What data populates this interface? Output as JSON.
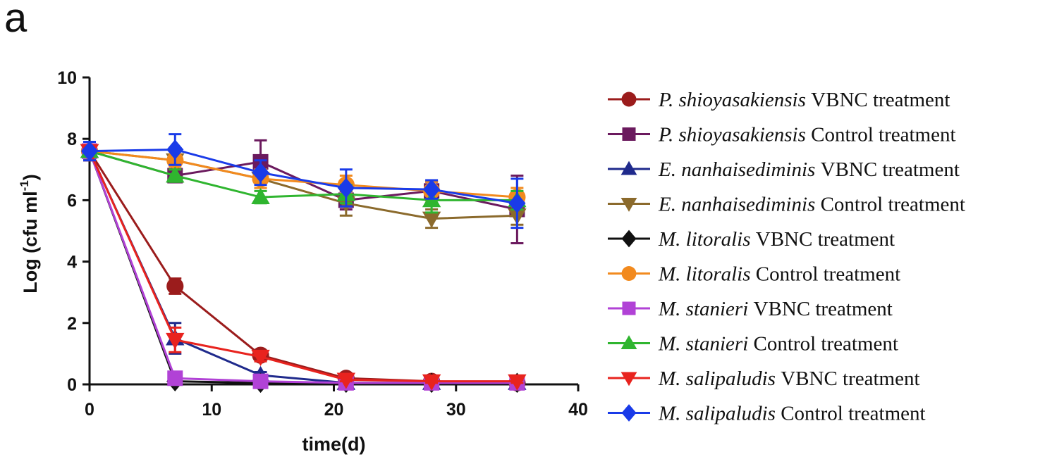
{
  "figure": {
    "panel_letter": "a"
  },
  "chart_data": {
    "type": "line",
    "title": "",
    "xlabel": "time(d)",
    "ylabel": "Log (cfu ml",
    "ylabel_superscript": "-1",
    "ylabel_close": ")",
    "xlim": [
      0,
      40
    ],
    "ylim": [
      0,
      10
    ],
    "x_ticks": [
      "0",
      "10",
      "20",
      "30",
      "40"
    ],
    "y_ticks": [
      "0",
      "2",
      "4",
      "6",
      "8",
      "10"
    ],
    "x": [
      0,
      7,
      14,
      21,
      28,
      35
    ],
    "legend_position": "right",
    "series": [
      {
        "name": "VBNC treatment",
        "species": "P. shioyasakiensis",
        "color": "#9b1c1c",
        "marker": "circle",
        "values": [
          7.6,
          3.2,
          0.95,
          0.2,
          0.1,
          0.05
        ],
        "errors": [
          0.3,
          0.25,
          0.15,
          0.1,
          0.05,
          0.05
        ]
      },
      {
        "name": "Control treatment",
        "species": "P. shioyasakiensis",
        "color": "#6b1a5e",
        "marker": "square",
        "values": [
          7.6,
          6.8,
          7.25,
          6.0,
          6.3,
          5.7
        ],
        "errors": [
          0.3,
          0.2,
          0.7,
          0.3,
          0.3,
          1.1
        ]
      },
      {
        "name": "VBNC treatment",
        "species": "E. nanhaisediminis",
        "color": "#1f2a8c",
        "marker": "triangle-up",
        "values": [
          7.6,
          1.5,
          0.3,
          0.05,
          0.05,
          0.05
        ],
        "errors": [
          0.3,
          0.5,
          0.1,
          0.05,
          0.05,
          0.05
        ]
      },
      {
        "name": "Control treatment",
        "species": "E. nanhaisediminis",
        "color": "#8b6a2c",
        "marker": "triangle-down",
        "values": [
          7.6,
          7.3,
          6.7,
          5.9,
          5.4,
          5.5
        ],
        "errors": [
          0.3,
          0.3,
          0.3,
          0.4,
          0.3,
          0.3
        ]
      },
      {
        "name": "VBNC treatment",
        "species": "M. litoralis",
        "color": "#111111",
        "marker": "diamond",
        "values": [
          7.6,
          0.1,
          0.05,
          0.05,
          0.05,
          0.05
        ],
        "errors": [
          0.3,
          0.05,
          0.05,
          0.05,
          0.05,
          0.05
        ]
      },
      {
        "name": "Control treatment",
        "species": "M. litoralis",
        "color": "#f28a1e",
        "marker": "circle",
        "values": [
          7.6,
          7.3,
          6.7,
          6.5,
          6.3,
          6.1
        ],
        "errors": [
          0.3,
          0.2,
          0.3,
          0.3,
          0.3,
          0.3
        ]
      },
      {
        "name": "VBNC treatment",
        "species": "M. stanieri",
        "color": "#b142d6",
        "marker": "square",
        "values": [
          7.6,
          0.2,
          0.1,
          0.05,
          0.05,
          0.05
        ],
        "errors": [
          0.3,
          0.1,
          0.05,
          0.05,
          0.05,
          0.05
        ]
      },
      {
        "name": "Control treatment",
        "species": "M. stanieri",
        "color": "#2fb52f",
        "marker": "triangle-up",
        "values": [
          7.6,
          6.8,
          6.1,
          6.2,
          6.0,
          6.0
        ],
        "errors": [
          0.3,
          0.2,
          0.2,
          0.3,
          0.4,
          0.3
        ]
      },
      {
        "name": "VBNC treatment",
        "species": "M. salipaludis",
        "color": "#e8231e",
        "marker": "triangle-down",
        "values": [
          7.6,
          1.45,
          0.9,
          0.15,
          0.1,
          0.1
        ],
        "errors": [
          0.3,
          0.4,
          0.15,
          0.05,
          0.05,
          0.05
        ]
      },
      {
        "name": "Control treatment",
        "species": "M. salipaludis",
        "color": "#1a3be8",
        "marker": "diamond",
        "values": [
          7.6,
          7.65,
          6.9,
          6.4,
          6.35,
          5.9
        ],
        "errors": [
          0.3,
          0.5,
          0.4,
          0.6,
          0.3,
          0.8
        ]
      }
    ]
  }
}
